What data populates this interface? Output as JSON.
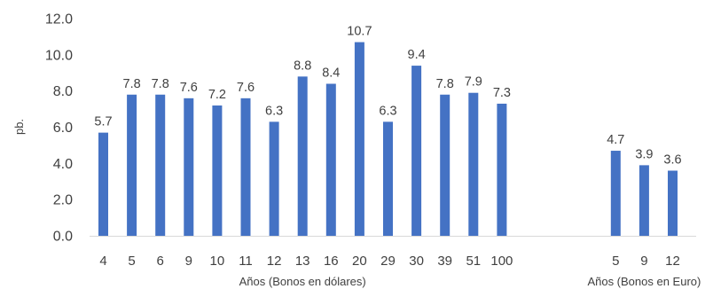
{
  "chart_data": {
    "type": "bar",
    "ylabel": "pb.",
    "ylim": [
      0,
      12
    ],
    "yticks": [
      "0.0",
      "2.0",
      "4.0",
      "6.0",
      "8.0",
      "10.0",
      "12.0"
    ],
    "grid": false,
    "bar_color": "#4472C4",
    "groups": [
      {
        "label": "Años (Bonos en dólares)",
        "categories": [
          "4",
          "5",
          "6",
          "9",
          "10",
          "11",
          "12",
          "13",
          "16",
          "20",
          "29",
          "30",
          "39",
          "51",
          "100"
        ],
        "values": [
          5.7,
          7.8,
          7.8,
          7.6,
          7.2,
          7.6,
          6.3,
          8.8,
          8.4,
          10.7,
          6.3,
          9.4,
          7.8,
          7.9,
          7.3
        ],
        "value_labels": [
          "5.7",
          "7.8",
          "7.8",
          "7.6",
          "7.2",
          "7.6",
          "6.3",
          "8.8",
          "8.4",
          "10.7",
          "6.3",
          "9.4",
          "7.8",
          "7.9",
          "7.3"
        ]
      },
      {
        "label": "Años (Bonos en Euro)",
        "categories": [
          "5",
          "9",
          "12"
        ],
        "values": [
          4.7,
          3.9,
          3.6
        ],
        "value_labels": [
          "4.7",
          "3.9",
          "3.6"
        ]
      }
    ]
  }
}
